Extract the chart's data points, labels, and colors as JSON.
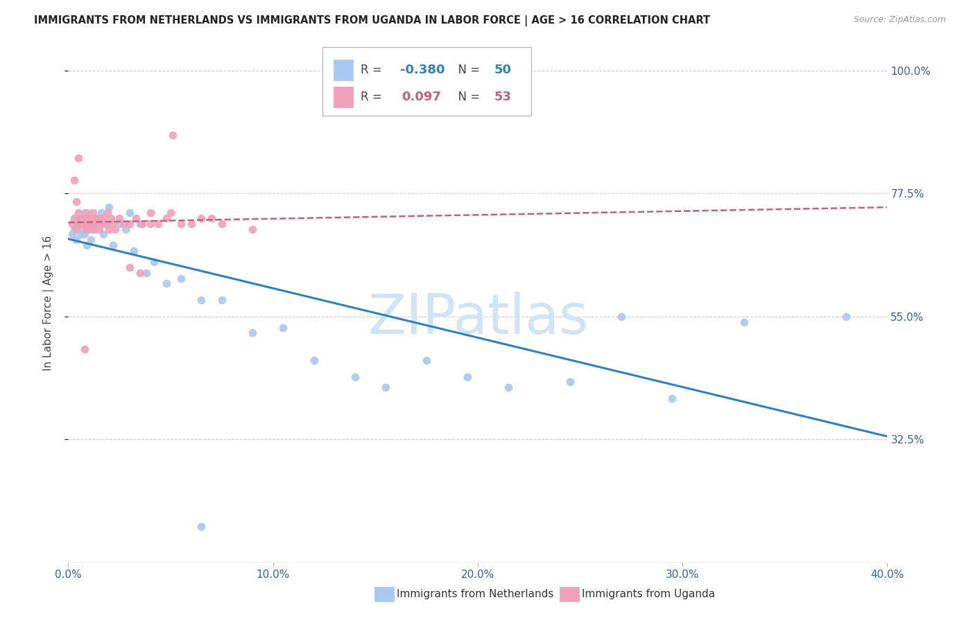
{
  "title": "IMMIGRANTS FROM NETHERLANDS VS IMMIGRANTS FROM UGANDA IN LABOR FORCE | AGE > 16 CORRELATION CHART",
  "source": "Source: ZipAtlas.com",
  "ylabel": "In Labor Force | Age > 16",
  "xlim": [
    0.0,
    0.4
  ],
  "ylim": [
    0.1,
    1.05
  ],
  "ytick_values": [
    0.325,
    0.55,
    0.775,
    1.0
  ],
  "xtick_values": [
    0.0,
    0.1,
    0.2,
    0.3,
    0.4
  ],
  "netherlands_color": "#A8C8F0",
  "uganda_color": "#F0A0B8",
  "netherlands_R": -0.38,
  "netherlands_N": 50,
  "uganda_R": 0.097,
  "uganda_N": 53,
  "netherlands_line_color": "#3080C0",
  "uganda_line_color": "#C06080",
  "watermark": "ZIPatlas",
  "watermark_color": "#D0E4F8",
  "nl_x": [
    0.002,
    0.003,
    0.004,
    0.005,
    0.005,
    0.006,
    0.006,
    0.007,
    0.007,
    0.008,
    0.008,
    0.009,
    0.01,
    0.01,
    0.011,
    0.011,
    0.012,
    0.013,
    0.014,
    0.015,
    0.016,
    0.017,
    0.018,
    0.02,
    0.022,
    0.025,
    0.028,
    0.03,
    0.032,
    0.035,
    0.038,
    0.042,
    0.048,
    0.055,
    0.065,
    0.075,
    0.09,
    0.105,
    0.12,
    0.14,
    0.155,
    0.175,
    0.195,
    0.215,
    0.245,
    0.27,
    0.295,
    0.33,
    0.065,
    0.38
  ],
  "nl_y": [
    0.7,
    0.71,
    0.69,
    0.72,
    0.73,
    0.7,
    0.72,
    0.71,
    0.73,
    0.7,
    0.74,
    0.68,
    0.72,
    0.71,
    0.73,
    0.69,
    0.72,
    0.71,
    0.73,
    0.72,
    0.74,
    0.7,
    0.72,
    0.75,
    0.68,
    0.72,
    0.71,
    0.74,
    0.67,
    0.72,
    0.63,
    0.65,
    0.61,
    0.62,
    0.58,
    0.58,
    0.52,
    0.53,
    0.47,
    0.44,
    0.42,
    0.47,
    0.44,
    0.42,
    0.43,
    0.55,
    0.4,
    0.54,
    0.165,
    0.55
  ],
  "ug_x": [
    0.002,
    0.003,
    0.004,
    0.005,
    0.005,
    0.006,
    0.007,
    0.007,
    0.008,
    0.009,
    0.009,
    0.01,
    0.01,
    0.011,
    0.012,
    0.012,
    0.013,
    0.014,
    0.015,
    0.015,
    0.016,
    0.017,
    0.018,
    0.019,
    0.02,
    0.021,
    0.022,
    0.023,
    0.025,
    0.027,
    0.03,
    0.033,
    0.036,
    0.04,
    0.044,
    0.048,
    0.055,
    0.065,
    0.075,
    0.09,
    0.003,
    0.004,
    0.005,
    0.006,
    0.007,
    0.008,
    0.04,
    0.05,
    0.06,
    0.07,
    0.03,
    0.035,
    0.051
  ],
  "ug_y": [
    0.72,
    0.73,
    0.71,
    0.72,
    0.74,
    0.73,
    0.72,
    0.73,
    0.72,
    0.71,
    0.74,
    0.72,
    0.73,
    0.72,
    0.74,
    0.71,
    0.73,
    0.72,
    0.71,
    0.73,
    0.72,
    0.73,
    0.72,
    0.74,
    0.71,
    0.73,
    0.72,
    0.71,
    0.73,
    0.72,
    0.72,
    0.73,
    0.72,
    0.74,
    0.72,
    0.73,
    0.72,
    0.73,
    0.72,
    0.71,
    0.8,
    0.76,
    0.84,
    0.72,
    0.73,
    0.49,
    0.72,
    0.74,
    0.72,
    0.73,
    0.64,
    0.63,
    0.882
  ]
}
